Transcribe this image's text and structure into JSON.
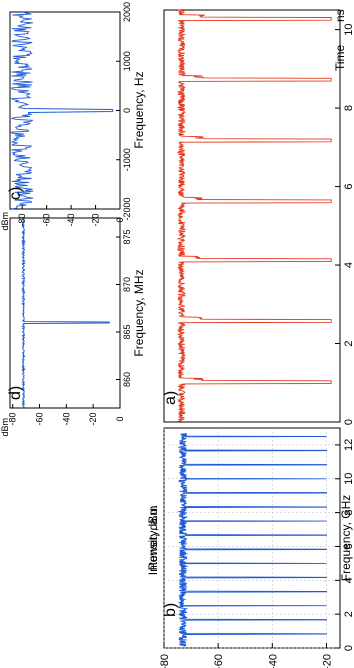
{
  "colors": {
    "red_trace": "#e63a1e",
    "blue_trace": "#1f5bd6",
    "grid": "#bdbdbd"
  },
  "chart_data": [
    {
      "panel": "a)",
      "type": "line",
      "xlabel": "Time",
      "xunit": "ns",
      "ylabel": "Intensity, a.u.",
      "xlim": [
        0,
        10.5
      ],
      "x_ticks": [
        0,
        2,
        4,
        6,
        8,
        10
      ],
      "grid": false,
      "series": [
        {
          "color": "#e63a1e",
          "pulse_times_ns": [
            1.0,
            2.55,
            4.1,
            5.6,
            7.15,
            8.7,
            10.25
          ],
          "baseline": 0.1,
          "peak": 0.95
        }
      ]
    },
    {
      "panel": "b)",
      "type": "line",
      "xlabel": "Frequency, GHz",
      "ylabel": "Power, dBm",
      "xlim": [
        0,
        13
      ],
      "ylim": [
        -80,
        -15
      ],
      "x_ticks": [
        0,
        2,
        4,
        6,
        8,
        10,
        12
      ],
      "y_ticks": [
        -20,
        -40,
        -60,
        -80
      ],
      "y_tick_labels": [
        "-20",
        "-40",
        "-60",
        "-80"
      ],
      "grid": true,
      "series": [
        {
          "color": "#1f5bd6",
          "peak_freqs_ghz": [
            0.83,
            1.67,
            2.5,
            3.33,
            4.17,
            5.0,
            5.83,
            6.67,
            7.5,
            8.33,
            9.17,
            10.0,
            10.83,
            11.67,
            12.5
          ],
          "peak_dbm": -20,
          "noise_floor_dbm": -73
        }
      ]
    },
    {
      "panel": "c)",
      "type": "line",
      "xlabel": "Frequency, Hz",
      "ylabel": "dBm",
      "xlim": [
        -2000,
        2000
      ],
      "ylim": [
        -90,
        0
      ],
      "x_ticks": [
        -2000,
        -1000,
        0,
        1000,
        2000
      ],
      "x_tick_labels": [
        "-2000",
        "-1000",
        "0",
        "1000",
        "2000"
      ],
      "y_ticks": [
        0,
        -20,
        -40,
        -60,
        -80
      ],
      "y_tick_labels": [
        "0",
        "-20",
        "-40",
        "-60",
        "-80"
      ],
      "grid": false,
      "series": [
        {
          "color": "#1f5bd6",
          "peak_hz": 0,
          "peak_dbm": -6,
          "noise_floor_dbm": -80
        }
      ]
    },
    {
      "panel": "d)",
      "type": "line",
      "xlabel": "Frequency, MHz",
      "ylabel": "dBm",
      "xlim": [
        857,
        877
      ],
      "ylim": [
        -82,
        0
      ],
      "x_ticks": [
        860,
        865,
        870,
        875
      ],
      "x_tick_labels": [
        "860",
        "865",
        "870",
        "875"
      ],
      "y_ticks": [
        0,
        -20,
        -40,
        -60,
        -80
      ],
      "y_tick_labels": [
        "0",
        "-20",
        "-40",
        "-60",
        "-80"
      ],
      "grid": false,
      "series": [
        {
          "color": "#1f5bd6",
          "peak_mhz": 866,
          "peak_dbm": -8,
          "noise_floor_dbm": -72
        }
      ]
    }
  ]
}
